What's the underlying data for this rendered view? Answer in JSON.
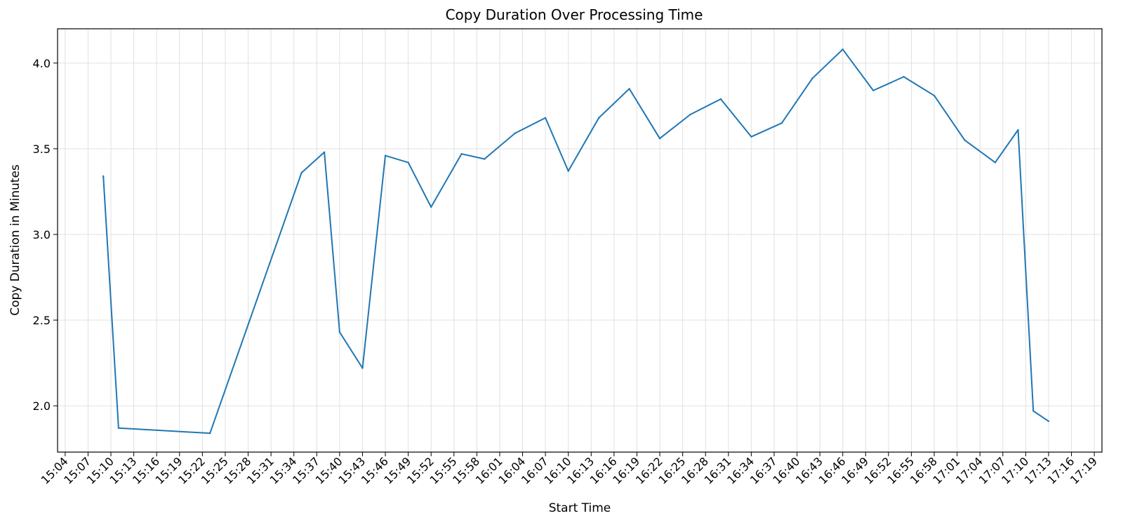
{
  "chart_data": {
    "type": "line",
    "title": "Copy Duration Over Processing Time",
    "xlabel": "Start Time",
    "ylabel": "Copy Duration in Minutes",
    "grid": true,
    "legend": "none",
    "colors": {
      "line": "#1f77b4",
      "grid": "#e0e0e0",
      "axis": "#000000"
    },
    "xlim": [
      "15:03",
      "17:20"
    ],
    "ylim": [
      1.73,
      4.2
    ],
    "x_ticks": [
      "15:04",
      "15:07",
      "15:10",
      "15:13",
      "15:16",
      "15:19",
      "15:22",
      "15:25",
      "15:28",
      "15:31",
      "15:34",
      "15:37",
      "15:40",
      "15:43",
      "15:46",
      "15:49",
      "15:52",
      "15:55",
      "15:58",
      "16:01",
      "16:04",
      "16:07",
      "16:10",
      "16:13",
      "16:16",
      "16:19",
      "16:22",
      "16:25",
      "16:28",
      "16:31",
      "16:34",
      "16:37",
      "16:40",
      "16:43",
      "16:46",
      "16:49",
      "16:52",
      "16:55",
      "16:58",
      "17:01",
      "17:04",
      "17:07",
      "17:10",
      "17:13",
      "17:16",
      "17:19"
    ],
    "y_ticks": [
      "2.0",
      "2.5",
      "3.0",
      "3.5",
      "4.0"
    ],
    "series": [
      {
        "x": [
          "15:09",
          "15:11",
          "15:23",
          "15:35",
          "15:38",
          "15:40",
          "15:43",
          "15:46",
          "15:49",
          "15:52",
          "15:56",
          "15:59",
          "16:03",
          "16:07",
          "16:10",
          "16:14",
          "16:18",
          "16:22",
          "16:26",
          "16:30",
          "16:34",
          "16:38",
          "16:42",
          "16:46",
          "16:50",
          "16:54",
          "16:58",
          "17:02",
          "17:06",
          "17:09",
          "17:11",
          "17:13"
        ],
        "y": [
          3.34,
          1.87,
          1.84,
          3.36,
          3.48,
          2.43,
          2.22,
          3.46,
          3.42,
          3.16,
          3.47,
          3.44,
          3.59,
          3.68,
          3.37,
          3.68,
          3.85,
          3.56,
          3.7,
          3.79,
          3.57,
          3.65,
          3.91,
          4.08,
          3.84,
          3.92,
          3.81,
          3.55,
          3.42,
          3.61,
          1.97,
          1.91
        ]
      }
    ]
  }
}
